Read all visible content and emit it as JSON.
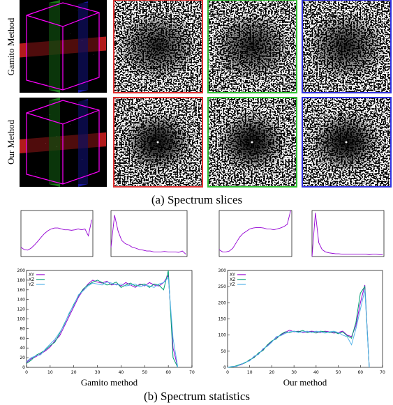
{
  "row_labels": [
    "Gamito Method",
    "Our Method"
  ],
  "caption_a": "(a) Spectrum slices",
  "caption_b": "(b) Spectrum statistics",
  "chart_data": [
    {
      "type": "line",
      "x": [
        0,
        3,
        6,
        9,
        12,
        15,
        18,
        21,
        24,
        27,
        30,
        33,
        36,
        39,
        42,
        45,
        48,
        51,
        54,
        57,
        60,
        63
      ],
      "xlim": [
        0,
        64
      ],
      "ylim": [
        0,
        1
      ],
      "series": [
        {
          "color": "#9400d3",
          "values": [
            0.2,
            0.15,
            0.14,
            0.18,
            0.25,
            0.33,
            0.42,
            0.5,
            0.56,
            0.6,
            0.62,
            0.62,
            0.6,
            0.58,
            0.58,
            0.57,
            0.58,
            0.6,
            0.58,
            0.6,
            0.45,
            0.8
          ]
        }
      ]
    },
    {
      "type": "line",
      "x": [
        0,
        3,
        6,
        9,
        12,
        15,
        18,
        21,
        24,
        27,
        30,
        33,
        36,
        39,
        42,
        45,
        48,
        51,
        54,
        57,
        60,
        63
      ],
      "xlim": [
        0,
        64
      ],
      "ylim": [
        0,
        1
      ],
      "series": [
        {
          "color": "#9400d3",
          "values": [
            0.2,
            0.9,
            0.55,
            0.35,
            0.28,
            0.25,
            0.2,
            0.18,
            0.15,
            0.14,
            0.12,
            0.12,
            0.1,
            0.1,
            0.1,
            0.11,
            0.1,
            0.1,
            0.1,
            0.09,
            0.12,
            0.05
          ]
        }
      ]
    },
    {
      "type": "line",
      "x": [
        0,
        3,
        6,
        9,
        12,
        15,
        18,
        21,
        24,
        27,
        30,
        33,
        36,
        39,
        42,
        45,
        48,
        51,
        54,
        57,
        60,
        63
      ],
      "xlim": [
        0,
        64
      ],
      "ylim": [
        0,
        1
      ],
      "series": [
        {
          "color": "#9400d3",
          "values": [
            0.15,
            0.1,
            0.1,
            0.12,
            0.18,
            0.3,
            0.42,
            0.5,
            0.55,
            0.6,
            0.62,
            0.63,
            0.63,
            0.62,
            0.6,
            0.6,
            0.58,
            0.6,
            0.62,
            0.65,
            0.7,
            1.0
          ]
        }
      ]
    },
    {
      "type": "line",
      "x": [
        0,
        3,
        6,
        9,
        12,
        15,
        18,
        21,
        24,
        27,
        30,
        33,
        36,
        39,
        42,
        45,
        48,
        51,
        54,
        57,
        60,
        63
      ],
      "xlim": [
        0,
        64
      ],
      "ylim": [
        0,
        1
      ],
      "series": [
        {
          "color": "#9400d3",
          "values": [
            0.0,
            0.95,
            0.3,
            0.15,
            0.1,
            0.08,
            0.07,
            0.06,
            0.06,
            0.05,
            0.05,
            0.05,
            0.05,
            0.05,
            0.05,
            0.05,
            0.05,
            0.04,
            0.05,
            0.05,
            0.04,
            0.04
          ]
        }
      ]
    },
    {
      "type": "line",
      "x_label": "Gamito method",
      "x": [
        0,
        2,
        4,
        6,
        8,
        10,
        12,
        14,
        16,
        18,
        20,
        22,
        24,
        26,
        28,
        30,
        32,
        34,
        36,
        38,
        40,
        42,
        44,
        46,
        48,
        50,
        52,
        54,
        56,
        58,
        60,
        62,
        64
      ],
      "xlim": [
        0,
        70
      ],
      "xticks": [
        0,
        10,
        20,
        30,
        40,
        50,
        60,
        70
      ],
      "ylim": [
        0,
        200
      ],
      "yticks": [
        0,
        20,
        40,
        60,
        80,
        100,
        120,
        140,
        160,
        180,
        200
      ],
      "series": [
        {
          "name": "XY",
          "color": "#9400d3",
          "values": [
            10,
            18,
            22,
            28,
            34,
            42,
            55,
            65,
            85,
            105,
            125,
            145,
            160,
            172,
            180,
            176,
            174,
            178,
            170,
            172,
            168,
            175,
            170,
            165,
            172,
            168,
            175,
            170,
            168,
            175,
            190,
            40,
            0
          ]
        },
        {
          "name": "XZ",
          "color": "#009e73",
          "values": [
            8,
            15,
            25,
            30,
            36,
            45,
            52,
            70,
            90,
            110,
            130,
            148,
            162,
            170,
            176,
            180,
            175,
            170,
            172,
            176,
            165,
            170,
            174,
            168,
            170,
            172,
            165,
            172,
            170,
            160,
            200,
            20,
            0
          ]
        },
        {
          "name": "YZ",
          "color": "#56b4e9",
          "values": [
            12,
            20,
            24,
            26,
            38,
            48,
            58,
            72,
            88,
            112,
            128,
            150,
            158,
            168,
            174,
            172,
            170,
            176,
            174,
            170,
            172,
            168,
            170,
            172,
            166,
            170,
            168,
            165,
            172,
            175,
            185,
            60,
            0
          ]
        }
      ]
    },
    {
      "type": "line",
      "x_label": "Our method",
      "x": [
        0,
        2,
        4,
        6,
        8,
        10,
        12,
        14,
        16,
        18,
        20,
        22,
        24,
        26,
        28,
        30,
        32,
        34,
        36,
        38,
        40,
        42,
        44,
        46,
        48,
        50,
        52,
        54,
        56,
        58,
        60,
        62,
        64
      ],
      "xlim": [
        0,
        70
      ],
      "xticks": [
        0,
        10,
        20,
        30,
        40,
        50,
        60,
        70
      ],
      "ylim": [
        0,
        300
      ],
      "yticks": [
        0,
        50,
        100,
        150,
        200,
        250,
        300
      ],
      "series": [
        {
          "name": "XY",
          "color": "#9400d3",
          "values": [
            0,
            2,
            4,
            8,
            15,
            22,
            32,
            42,
            55,
            68,
            80,
            92,
            100,
            108,
            115,
            110,
            112,
            108,
            110,
            112,
            110,
            108,
            112,
            110,
            106,
            108,
            112,
            100,
            95,
            130,
            200,
            255,
            0
          ]
        },
        {
          "name": "XZ",
          "color": "#009e73",
          "values": [
            0,
            1,
            5,
            10,
            14,
            24,
            30,
            45,
            52,
            70,
            82,
            88,
            102,
            110,
            108,
            112,
            110,
            114,
            108,
            110,
            106,
            112,
            110,
            108,
            110,
            104,
            110,
            98,
            90,
            140,
            230,
            250,
            0
          ]
        },
        {
          "name": "YZ",
          "color": "#56b4e9",
          "values": [
            0,
            3,
            3,
            9,
            16,
            20,
            35,
            40,
            58,
            65,
            78,
            95,
            98,
            105,
            110,
            112,
            108,
            110,
            112,
            108,
            112,
            110,
            106,
            110,
            112,
            108,
            100,
            95,
            70,
            120,
            180,
            240,
            0
          ]
        }
      ]
    }
  ]
}
